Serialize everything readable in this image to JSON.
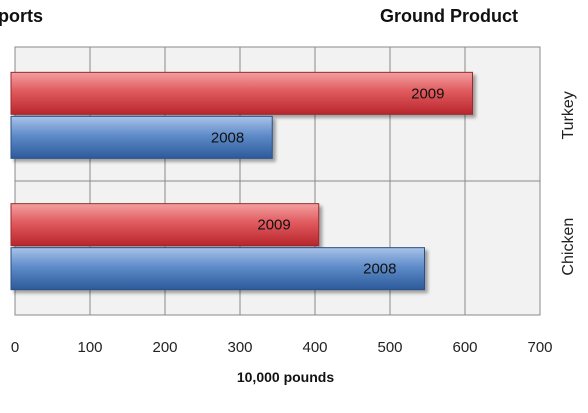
{
  "titles": {
    "left": "ports",
    "right": "Ground Product"
  },
  "chart_data": {
    "type": "bar",
    "orientation": "horizontal",
    "categories": [
      "Turkey",
      "Chicken"
    ],
    "series": [
      {
        "name": "2009",
        "values": [
          610,
          405
        ],
        "color": "#d9454a"
      },
      {
        "name": "2008",
        "values": [
          343,
          546
        ],
        "color": "#3f6fb0"
      }
    ],
    "xlabel": "10,000 pounds",
    "xlim": [
      0,
      700
    ],
    "xticks": [
      0,
      100,
      200,
      300,
      400,
      500,
      600,
      700
    ],
    "grid": true,
    "plot_background": "#f2f2f2"
  }
}
